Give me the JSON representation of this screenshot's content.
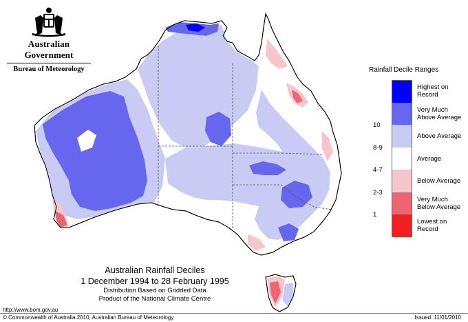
{
  "header": {
    "government": "Australian Government",
    "bureau": "Bureau of Meteorology"
  },
  "map": {
    "region": "Australia",
    "title": "Australian Rainfall Deciles",
    "period": "1 December 1994 to 28 February 1995",
    "note_1": "Distribution Based on Gridded Data",
    "note_2": "Product of the National Climate Centre"
  },
  "legend": {
    "title": "Rainfall Decile Ranges",
    "classes": [
      {
        "label_line1": "Highest on",
        "label_line2": "Record",
        "range": "",
        "color": "#0000FF"
      },
      {
        "label_line1": "Very Much",
        "label_line2": "Above Average",
        "range": "10",
        "color": "#6666EE"
      },
      {
        "label_line1": "Above Average",
        "label_line2": "",
        "range": "8-9",
        "color": "#C8CCF4"
      },
      {
        "label_line1": "Average",
        "label_line2": "",
        "range": "4-7",
        "color": "#FFFFFF"
      },
      {
        "label_line1": "Below Average",
        "label_line2": "",
        "range": "2-3",
        "color": "#F7C6CB"
      },
      {
        "label_line1": "Very Much",
        "label_line2": "Below Average",
        "range": "1",
        "color": "#EE6470"
      },
      {
        "label_line1": "Lowest on",
        "label_line2": "Record",
        "range": "",
        "color": "#F02020"
      }
    ]
  },
  "footer": {
    "url": "http://www.bom.gov.au",
    "copyright": "© Commonwealth of Australia 2010, Australian Bureau of Meteorology",
    "issued": "Issued: 11/01/2010"
  }
}
